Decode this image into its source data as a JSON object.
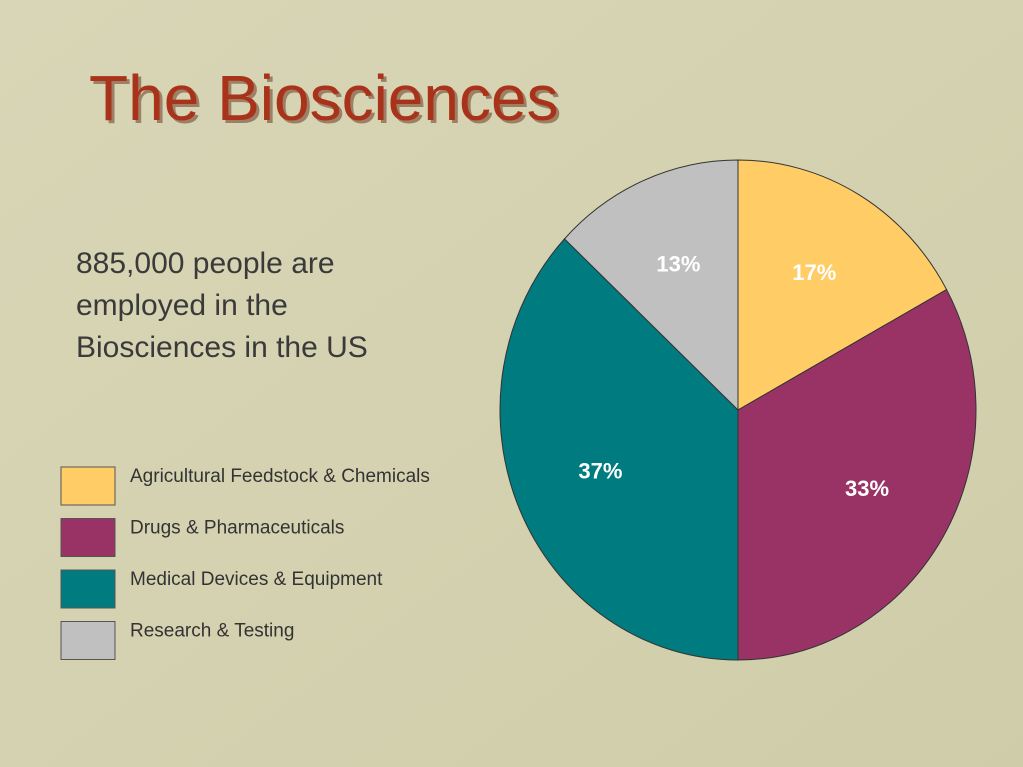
{
  "chart_data": {
    "type": "pie",
    "title": "The Biosciences",
    "body_text": [
      "885,000 people are",
      "employed in the",
      "Biosciences in the US"
    ],
    "categories": [
      "Agricultural Feedstock & Chemicals",
      "Drugs & Pharmaceuticals",
      "Medical Devices & Equipment",
      "Research & Testing"
    ],
    "values": [
      17,
      33,
      37,
      13
    ],
    "value_labels": [
      "17%",
      "33%",
      "37%",
      "13%"
    ],
    "colors": [
      "#FFCC66",
      "#993366",
      "#007B7F",
      "#C0C0C0"
    ],
    "legend": "left"
  }
}
